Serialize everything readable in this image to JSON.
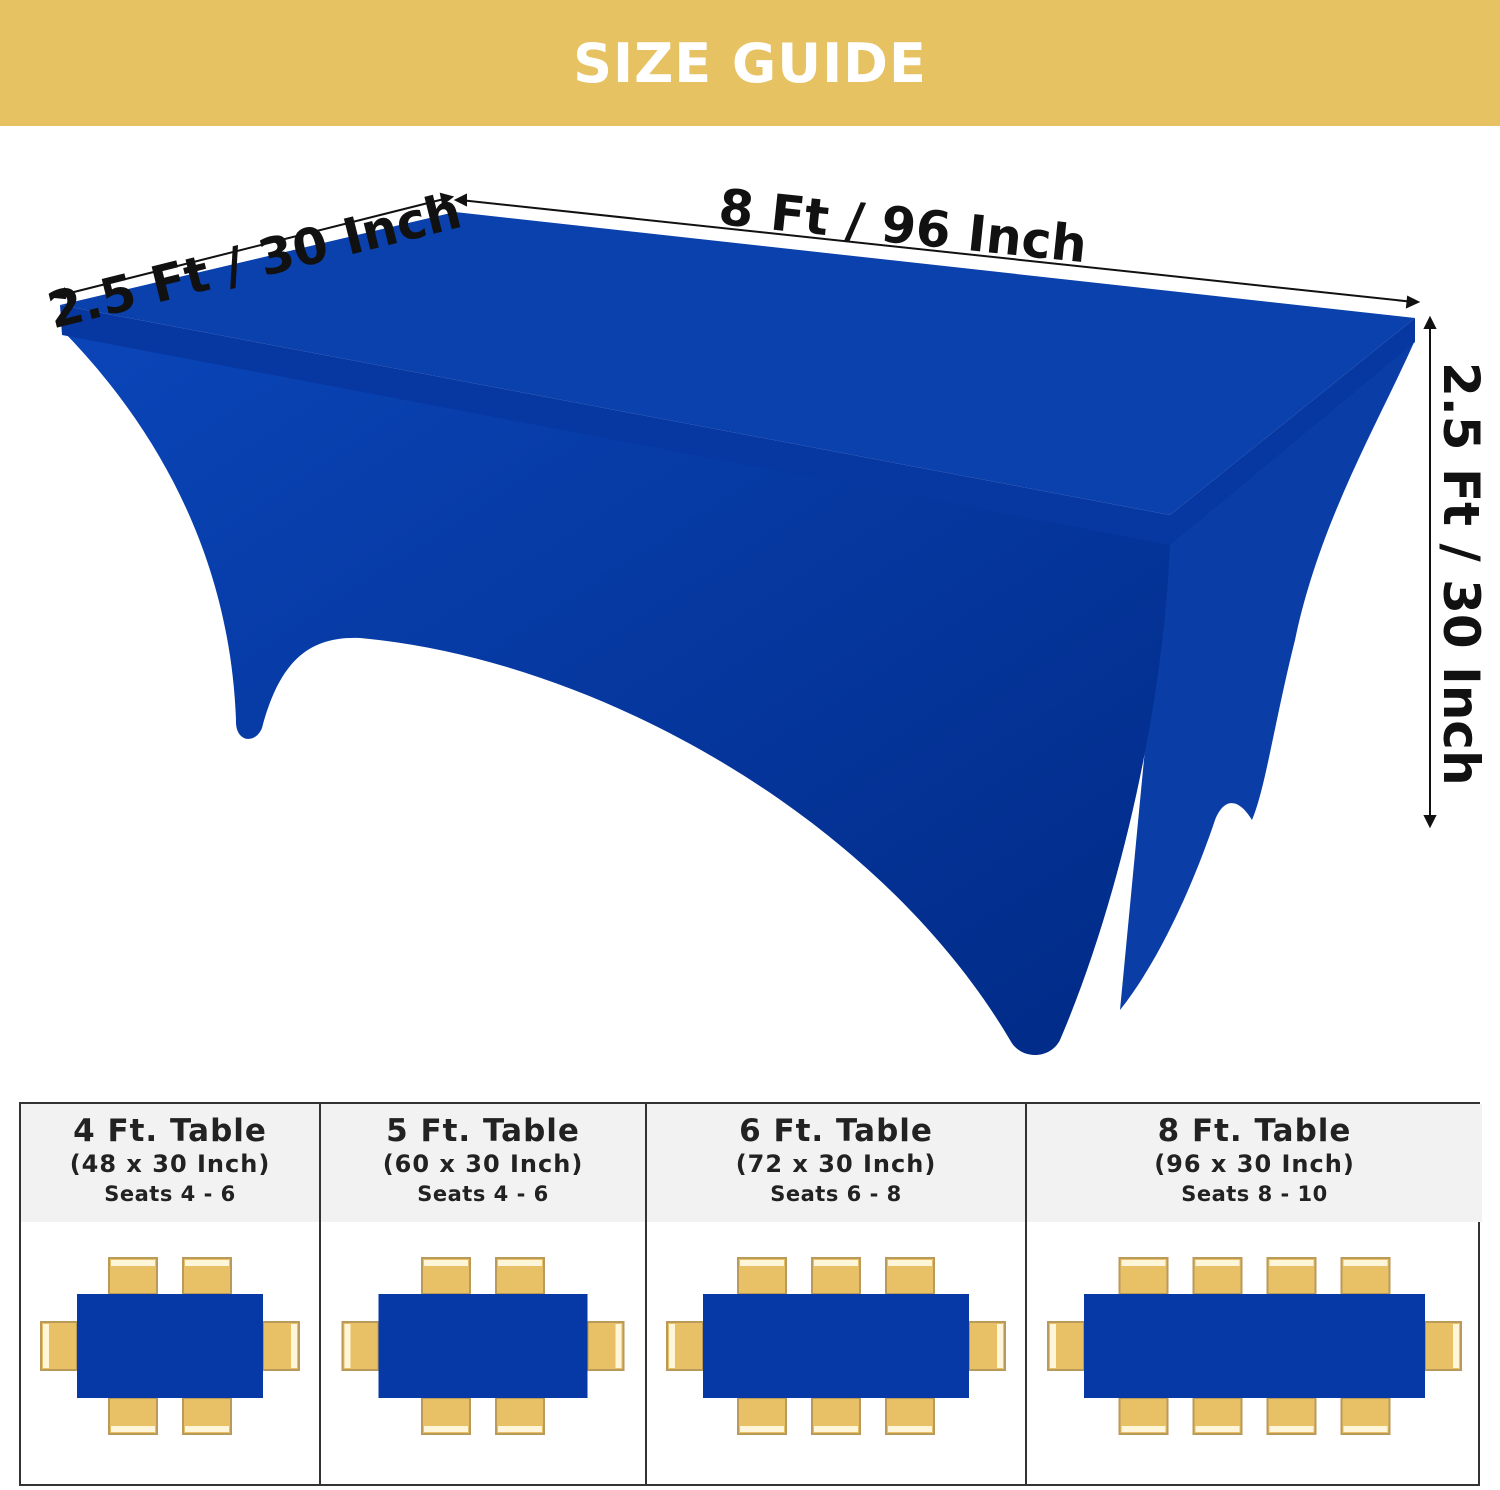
{
  "title": "SIZE GUIDE",
  "dimensions": {
    "width_label": "2.5 Ft / 30 Inch",
    "length_label": "8 Ft / 96 Inch",
    "height_label": "2.5 Ft / 30 Inch"
  },
  "colors": {
    "banner": "#e6c262",
    "cover": "#0638a6",
    "chair": "#e8c065"
  },
  "tables": [
    {
      "name": "4 Ft. Table",
      "size": "(48 x 30 Inch)",
      "seats": "Seats 4 - 6",
      "chairs_per_side": 2
    },
    {
      "name": "5 Ft. Table",
      "size": "(60 x 30 Inch)",
      "seats": "Seats 4 - 6",
      "chairs_per_side": 2
    },
    {
      "name": "6 Ft. Table",
      "size": "(72 x 30 Inch)",
      "seats": "Seats 6 - 8",
      "chairs_per_side": 3
    },
    {
      "name": "8 Ft. Table",
      "size": "(96 x 30 Inch)",
      "seats": "Seats 8 - 10",
      "chairs_per_side": 4
    }
  ]
}
